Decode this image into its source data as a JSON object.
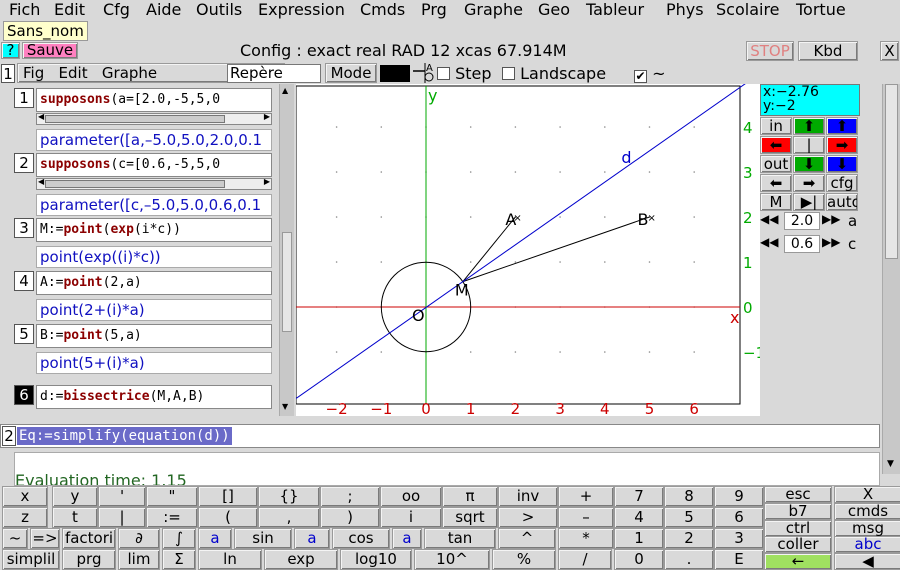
{
  "menu": [
    "Fich",
    "Edit",
    "Cfg",
    "Aide",
    "Outils",
    "Expression",
    "Cmds",
    "Prg",
    "Graphe",
    "Geo",
    "Tableur",
    "Phys",
    "Scolaire",
    "Tortue"
  ],
  "session_tab": "Sans_nom",
  "toolbar": {
    "help": "?",
    "save": "Sauve",
    "config": "Config  : exact real RAD 12 xcas 67.914M",
    "stop": "STOP",
    "kbd": "Kbd",
    "close": "X"
  },
  "geo": {
    "level": "1",
    "menu": [
      "Fig",
      "Edit",
      "Graphe"
    ],
    "frame_field": "Repère",
    "mode_label": "Mode",
    "step": "Step",
    "landscape": "Landscape",
    "tilde": "~",
    "step_checked": false,
    "landscape_checked": false,
    "tilde_checked": true
  },
  "entries": [
    {
      "num": "1",
      "kw": "supposons",
      "rest": "(a=[2.0,-5,5,0",
      "result": "parameter([a,–5.0,5.0,2.0,0.1"
    },
    {
      "num": "2",
      "kw": "supposons",
      "rest": "(c=[0.6,-5,5,0",
      "result": "parameter([c,–5.0,5.0,0.6,0.1"
    },
    {
      "num": "3",
      "pre": "M:=",
      "kw": "point",
      "rest": "(exp(i*c))",
      "kw2": "exp",
      "result": "point(exp((i)*c))"
    },
    {
      "num": "4",
      "pre": "A:=",
      "kw": "point",
      "rest": "(2,a)",
      "result": "point(2+(i)*a)"
    },
    {
      "num": "5",
      "pre": "B:=",
      "kw": "point",
      "rest": "(5,a)",
      "result": "point(5+(i)*a)"
    },
    {
      "num": "6",
      "pre": "d:=",
      "kw": "bissectrice",
      "rest": "(M,A,B)"
    }
  ],
  "graph": {
    "xticks": [
      "−2",
      "−1",
      "0",
      "1",
      "2",
      "3",
      "4",
      "5",
      "6"
    ],
    "yticks": [
      "4",
      "3",
      "2",
      "1",
      "0",
      "−1"
    ],
    "xlabel": "x",
    "ylabel": "y",
    "labels": {
      "d": "d",
      "A": "A",
      "B": "B",
      "M": "M",
      "O": "O"
    }
  },
  "side": {
    "coords": "x:−2.76\ny:−2",
    "in": "in",
    "out": "out",
    "cfg": "cfg",
    "M": "M",
    "auto": "auto",
    "a_val": "2.0",
    "a_name": "a",
    "c_val": "0.6",
    "c_name": "c"
  },
  "line2": {
    "num": "2",
    "text": "Eq:=simplify(equation(d))"
  },
  "eval_time": "Evaluation time: 1.15",
  "keyboard": {
    "rows": [
      [
        "x",
        "y",
        "'",
        "\"",
        "[]",
        "{}",
        ";",
        "oo",
        "π",
        "inv",
        "+",
        "7",
        "8",
        "9"
      ],
      [
        "z",
        "t",
        "|",
        ":=",
        "(",
        ",",
        ")",
        "i",
        "sqrt",
        ">",
        "–",
        "4",
        "5",
        "6"
      ],
      [
        "~",
        "=>",
        "factori",
        "∂",
        "∫",
        "a",
        "sin",
        "a",
        "cos",
        "a",
        "tan",
        "^",
        "*",
        "1",
        "2",
        "3"
      ],
      [
        "simplil",
        "prg",
        "lim",
        "Σ",
        "ln",
        "exp",
        "log10",
        "10^",
        "%",
        "/",
        "0",
        ".",
        "E"
      ]
    ],
    "right": [
      [
        "esc",
        "X"
      ],
      [
        "b7",
        "cmds"
      ],
      [
        "ctrl",
        "msg"
      ],
      [
        "coller",
        "abc"
      ],
      [
        "←",
        "◀"
      ]
    ]
  },
  "colors": {
    "xaxis": "#cc0000",
    "yaxis": "#00aa00",
    "line_d": "#0000cc",
    "coords_bg": "#00ffff",
    "save_bg": "#ff80c0",
    "help_bg": "#00ffff"
  }
}
